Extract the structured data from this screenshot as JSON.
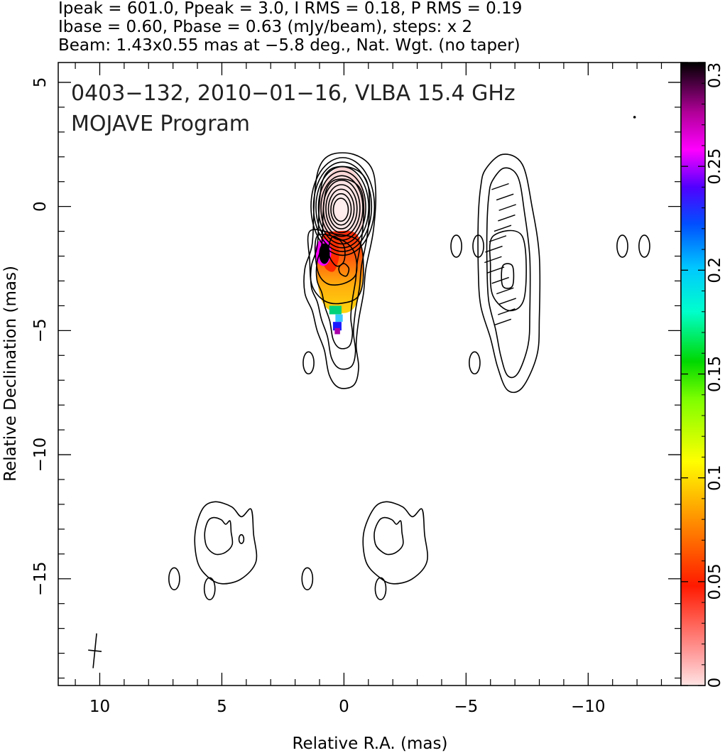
{
  "header": {
    "line1": "Ipeak = 601.0, Ppeak = 3.0, I RMS = 0.18, P RMS = 0.19",
    "line2": "Ibase = 0.60, Pbase = 0.63 (mJy/beam), steps: x 2",
    "line3": "Beam: 1.43x0.55 mas at −5.8 deg., Nat. Wgt. (no taper)"
  },
  "chart_data": {
    "type": "heatmap",
    "title": "0403−132, 2010−01−16, VLBA 15.4 GHz",
    "subtitle": "MOJAVE Program",
    "xlabel": "Relative R.A. (mas)",
    "ylabel": "Relative Declination (mas)",
    "xlim": [
      11.7,
      -13.8
    ],
    "ylim": [
      -19.3,
      5.8
    ],
    "x_ticks": [
      10,
      5,
      0,
      -5,
      -10
    ],
    "x_tick_labels": [
      "10",
      "5",
      "0",
      "−5",
      "−10"
    ],
    "y_ticks": [
      5,
      0,
      -5,
      -10,
      -15
    ],
    "y_tick_labels": [
      "5",
      "0",
      "−5",
      "−10",
      "−15"
    ],
    "colorbar": {
      "range": [
        0,
        0.3
      ],
      "ticks": [
        0,
        0.05,
        0.1,
        0.15,
        0.2,
        0.25,
        0.3
      ],
      "tick_labels": [
        "0",
        "0.05",
        "0.1",
        "0.15",
        "0.2",
        "0.25",
        "0.3"
      ]
    },
    "beam": {
      "major_mas": 1.43,
      "minor_mas": 0.55,
      "pa_deg": -5.8,
      "center": [
        10.2,
        -17.9
      ]
    },
    "total_intensity_contours": {
      "core": {
        "center": [
          0.05,
          0.0
        ],
        "semi_x": 1.3,
        "semi_y": 2.0,
        "levels": 10
      },
      "outer_jet": [
        [
          0.5,
          2.1
        ],
        [
          1.0,
          1.6
        ],
        [
          1.2,
          0.5
        ],
        [
          1.3,
          -1.5
        ],
        [
          1.6,
          -2.5
        ],
        [
          1.6,
          -3.5
        ],
        [
          1.3,
          -4.2
        ],
        [
          1.1,
          -5.0
        ],
        [
          0.8,
          -5.8
        ],
        [
          0.6,
          -6.8
        ],
        [
          0.2,
          -7.3
        ],
        [
          -0.4,
          -7.2
        ],
        [
          -0.6,
          -6.5
        ],
        [
          -0.5,
          -5.6
        ],
        [
          -0.6,
          -4.6
        ],
        [
          -0.8,
          -3.5
        ],
        [
          -0.9,
          -2.5
        ],
        [
          -1.2,
          -1.0
        ],
        [
          -1.3,
          0.6
        ],
        [
          -1.1,
          1.6
        ],
        [
          -0.4,
          2.1
        ]
      ],
      "small_islands": [
        [
          1.45,
          -6.3
        ],
        [
          -5.35,
          -6.3
        ],
        [
          -4.6,
          -1.6
        ],
        [
          -5.5,
          -1.6
        ],
        [
          -11.4,
          -1.6
        ],
        [
          -12.3,
          -1.6
        ],
        [
          6.95,
          -15.0
        ],
        [
          5.5,
          -15.4
        ],
        [
          1.5,
          -15.0
        ],
        [
          -1.5,
          -15.4
        ]
      ],
      "ghost_region": [
        [
          -5.8,
          1.5
        ],
        [
          -6.5,
          2.1
        ],
        [
          -7.3,
          1.7
        ],
        [
          -7.7,
          0.0
        ],
        [
          -8.0,
          -2.0
        ],
        [
          -8.0,
          -4.5
        ],
        [
          -7.9,
          -6.0
        ],
        [
          -7.3,
          -7.3
        ],
        [
          -6.7,
          -7.4
        ],
        [
          -6.3,
          -6.5
        ],
        [
          -6.0,
          -5.3
        ],
        [
          -5.6,
          -4.0
        ],
        [
          -5.5,
          -2.5
        ],
        [
          -5.5,
          -0.5
        ],
        [
          -5.6,
          0.8
        ]
      ],
      "southern_blobs": [
        [
          [
            5.3,
            -11.9
          ],
          [
            4.6,
            -12.1
          ],
          [
            4.2,
            -12.5
          ],
          [
            3.8,
            -12.2
          ],
          [
            3.7,
            -13.2
          ],
          [
            3.6,
            -14.3
          ],
          [
            4.2,
            -15.0
          ],
          [
            5.0,
            -15.2
          ],
          [
            5.6,
            -14.9
          ],
          [
            6.0,
            -14.3
          ],
          [
            6.1,
            -13.2
          ],
          [
            5.8,
            -12.2
          ]
        ],
        [
          [
            -1.7,
            -11.9
          ],
          [
            -2.4,
            -12.1
          ],
          [
            -2.8,
            -12.5
          ],
          [
            -3.2,
            -12.2
          ],
          [
            -3.3,
            -13.2
          ],
          [
            -3.4,
            -14.3
          ],
          [
            -2.8,
            -15.0
          ],
          [
            -2.0,
            -15.2
          ],
          [
            -1.4,
            -14.9
          ],
          [
            -0.9,
            -14.3
          ],
          [
            -0.8,
            -13.2
          ],
          [
            -1.2,
            -12.2
          ]
        ]
      ]
    }
  }
}
